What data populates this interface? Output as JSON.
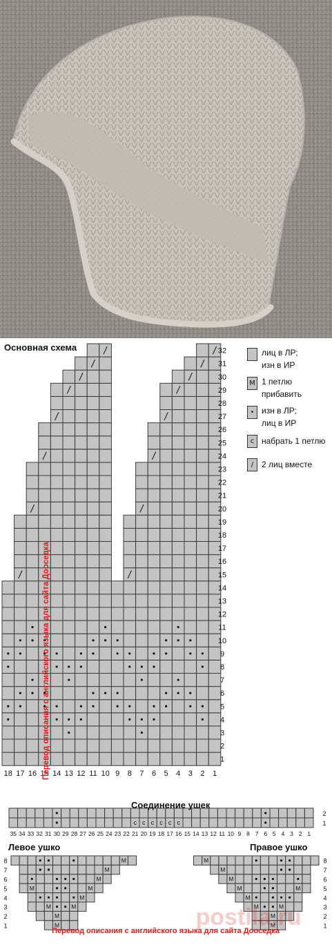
{
  "colors": {
    "cell": "#c4c4c4",
    "grid": "#3a3a3a",
    "watermark": "#e01818",
    "yarn": "#cbc4bc",
    "sand": "#8c8984"
  },
  "photo": {
    "subject": "knitted earflap hat"
  },
  "main_chart": {
    "title": "Основная схема",
    "row_numbers": [
      "1",
      "2",
      "3",
      "4",
      "5",
      "6",
      "7",
      "8",
      "9",
      "10",
      "11",
      "12",
      "13",
      "14",
      "15",
      "16",
      "17",
      "18",
      "19",
      "20",
      "21",
      "22",
      "23",
      "24",
      "25",
      "26",
      "27",
      "28",
      "29",
      "30",
      "31",
      "32"
    ],
    "col_numbers": [
      "18",
      "17",
      "16",
      "15",
      "14",
      "13",
      "12",
      "11",
      "10",
      "9",
      "8",
      "7",
      "6",
      "5",
      "4",
      "3",
      "2",
      "1"
    ],
    "watermark": "Перевод описания с английского языка для сайта Дооседка"
  },
  "legend": [
    {
      "symbol": "",
      "text_1": "лиц в ЛР;",
      "text_2": "изн в ИР"
    },
    {
      "symbol": "M",
      "text_1": "1 петлю",
      "text_2": "прибавить"
    },
    {
      "symbol": "•",
      "text_1": "изн в ЛР;",
      "text_2": "лиц в ИР"
    },
    {
      "symbol": "c",
      "text_1": "набрать 1 петлю",
      "text_2": ""
    },
    {
      "symbol": "/",
      "text_1": "2 лиц вместе",
      "text_2": ""
    }
  ],
  "join_chart": {
    "title": "Соединение ушек",
    "row_numbers": [
      "1",
      "2"
    ],
    "col_numbers": [
      "35",
      "34",
      "33",
      "32",
      "31",
      "30",
      "29",
      "28",
      "27",
      "26",
      "25",
      "24",
      "23",
      "22",
      "21",
      "20",
      "19",
      "18",
      "17",
      "16",
      "15",
      "14",
      "13",
      "12",
      "11",
      "10",
      "9",
      "8",
      "7",
      "6",
      "5",
      "4",
      "3",
      "2",
      "1"
    ],
    "cast_on_symbol": "c"
  },
  "left_ear": {
    "title": "Левое ушко",
    "row_numbers": [
      "1",
      "2",
      "3",
      "4",
      "5",
      "6",
      "7",
      "8"
    ]
  },
  "right_ear": {
    "title": "Правое ушко",
    "row_numbers": [
      "1",
      "2",
      "3",
      "4",
      "5",
      "6",
      "7",
      "8"
    ]
  },
  "bottom_watermark": "Перевод описания с английского языка для сайта Дооседка",
  "site_watermark": "postila.ru"
}
